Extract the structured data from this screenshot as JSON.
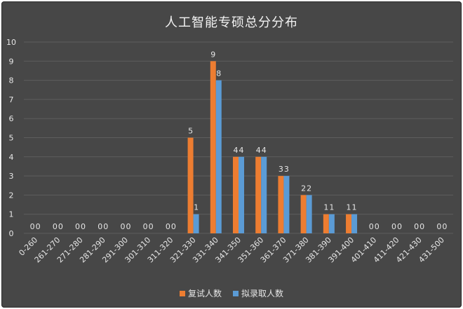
{
  "chart_data": {
    "type": "bar",
    "title": "人工智能专硕总分分布",
    "categories": [
      "0-260",
      "261-270",
      "271-280",
      "281-290",
      "291-300",
      "301-310",
      "311-320",
      "321-330",
      "331-340",
      "341-350",
      "351-360",
      "361-370",
      "371-380",
      "381-390",
      "391-400",
      "401-410",
      "411-420",
      "421-430",
      "431-500"
    ],
    "series": [
      {
        "name": "复试人数",
        "color": "#ed7d31",
        "values": [
          0,
          0,
          0,
          0,
          0,
          0,
          0,
          5,
          9,
          4,
          4,
          3,
          2,
          1,
          1,
          0,
          0,
          0,
          0
        ]
      },
      {
        "name": "拟录取人数",
        "color": "#5b9bd5",
        "values": [
          0,
          0,
          0,
          0,
          0,
          0,
          0,
          1,
          8,
          4,
          4,
          3,
          2,
          1,
          1,
          0,
          0,
          0,
          0
        ]
      }
    ],
    "ylim": [
      0,
      10
    ],
    "yticks": [
      0,
      1,
      2,
      3,
      4,
      5,
      6,
      7,
      8,
      9,
      10
    ],
    "grid": true,
    "legend_position": "bottom"
  }
}
